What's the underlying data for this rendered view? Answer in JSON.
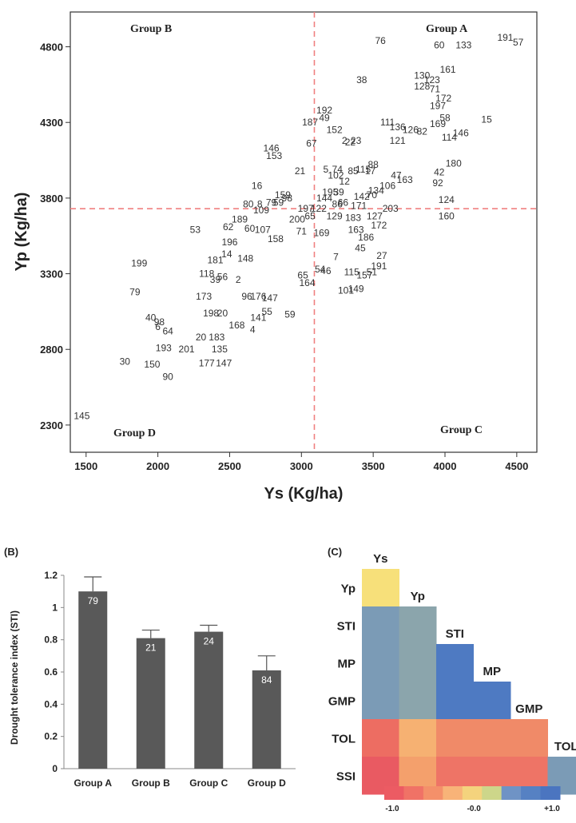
{
  "chart_data": [
    {
      "type": "scatter",
      "panel": "",
      "xlabel": "Ys (Kg/ha)",
      "ylabel": "Yp (Kg/ha)",
      "xlim": [
        1390,
        4640
      ],
      "ylim": [
        2120,
        5030
      ],
      "x_ticks": [
        1500,
        2000,
        2500,
        3000,
        3500,
        4000,
        4500
      ],
      "y_ticks": [
        2300,
        2800,
        3300,
        3800,
        4300,
        4800
      ],
      "ref_x": 3090,
      "ref_y": 3730,
      "quadrant_labels": {
        "a": "Group A",
        "b": "Group B",
        "c": "Group C",
        "d": "Group D"
      },
      "points": [
        {
          "id": "191",
          "x": 4420,
          "y": 4860
        },
        {
          "id": "57",
          "x": 4510,
          "y": 4830
        },
        {
          "id": "76",
          "x": 3550,
          "y": 4840
        },
        {
          "id": "60",
          "x": 3960,
          "y": 4810
        },
        {
          "id": "133",
          "x": 4130,
          "y": 4810
        },
        {
          "id": "161",
          "x": 4020,
          "y": 4650
        },
        {
          "id": "38",
          "x": 3420,
          "y": 4580
        },
        {
          "id": "130",
          "x": 3840,
          "y": 4610
        },
        {
          "id": "123",
          "x": 3910,
          "y": 4580
        },
        {
          "id": "128",
          "x": 3840,
          "y": 4540
        },
        {
          "id": "71",
          "x": 3930,
          "y": 4520
        },
        {
          "id": "172",
          "x": 3990,
          "y": 4460
        },
        {
          "id": "197",
          "x": 3950,
          "y": 4410
        },
        {
          "id": "15",
          "x": 4290,
          "y": 4320
        },
        {
          "id": "58",
          "x": 4000,
          "y": 4330
        },
        {
          "id": "169",
          "x": 3950,
          "y": 4290
        },
        {
          "id": "192",
          "x": 3160,
          "y": 4380
        },
        {
          "id": "187",
          "x": 3060,
          "y": 4300
        },
        {
          "id": "49",
          "x": 3160,
          "y": 4330
        },
        {
          "id": "111",
          "x": 3600,
          "y": 4300
        },
        {
          "id": "136",
          "x": 3670,
          "y": 4270
        },
        {
          "id": "126",
          "x": 3760,
          "y": 4250
        },
        {
          "id": "82",
          "x": 3840,
          "y": 4240
        },
        {
          "id": "152",
          "x": 3230,
          "y": 4250
        },
        {
          "id": "146",
          "x": 4110,
          "y": 4230
        },
        {
          "id": "114",
          "x": 4030,
          "y": 4200
        },
        {
          "id": "121",
          "x": 3670,
          "y": 4180
        },
        {
          "id": "2",
          "x": 3300,
          "y": 4180
        },
        {
          "id": "22",
          "x": 3340,
          "y": 4170
        },
        {
          "id": "23",
          "x": 3380,
          "y": 4180
        },
        {
          "id": "67",
          "x": 3070,
          "y": 4160
        },
        {
          "id": "180",
          "x": 4060,
          "y": 4030
        },
        {
          "id": "146",
          "x": 2790,
          "y": 4130
        },
        {
          "id": "153",
          "x": 2810,
          "y": 4080
        },
        {
          "id": "88",
          "x": 3500,
          "y": 4020
        },
        {
          "id": "42",
          "x": 3960,
          "y": 3970
        },
        {
          "id": "21",
          "x": 2990,
          "y": 3980
        },
        {
          "id": "5",
          "x": 3170,
          "y": 3990
        },
        {
          "id": "74",
          "x": 3250,
          "y": 3990
        },
        {
          "id": "85",
          "x": 3360,
          "y": 3980
        },
        {
          "id": "115",
          "x": 3430,
          "y": 3990
        },
        {
          "id": "17",
          "x": 3480,
          "y": 3980
        },
        {
          "id": "102",
          "x": 3240,
          "y": 3950
        },
        {
          "id": "47",
          "x": 3660,
          "y": 3950
        },
        {
          "id": "163",
          "x": 3720,
          "y": 3920
        },
        {
          "id": "12",
          "x": 3300,
          "y": 3910
        },
        {
          "id": "92",
          "x": 3950,
          "y": 3900
        },
        {
          "id": "16",
          "x": 2690,
          "y": 3880
        },
        {
          "id": "106",
          "x": 3600,
          "y": 3880
        },
        {
          "id": "134",
          "x": 3520,
          "y": 3850
        },
        {
          "id": "195",
          "x": 3200,
          "y": 3840
        },
        {
          "id": "39",
          "x": 3260,
          "y": 3840
        },
        {
          "id": "142",
          "x": 3420,
          "y": 3810
        },
        {
          "id": "70",
          "x": 3490,
          "y": 3820
        },
        {
          "id": "159",
          "x": 2870,
          "y": 3820
        },
        {
          "id": "144",
          "x": 3160,
          "y": 3800
        },
        {
          "id": "124",
          "x": 4010,
          "y": 3790
        },
        {
          "id": "98",
          "x": 2900,
          "y": 3800
        },
        {
          "id": "80",
          "x": 2630,
          "y": 3760
        },
        {
          "id": "8",
          "x": 2710,
          "y": 3760
        },
        {
          "id": "79",
          "x": 2790,
          "y": 3770
        },
        {
          "id": "59",
          "x": 2840,
          "y": 3770
        },
        {
          "id": "86",
          "x": 3250,
          "y": 3760
        },
        {
          "id": "66",
          "x": 3290,
          "y": 3770
        },
        {
          "id": "171",
          "x": 3400,
          "y": 3750
        },
        {
          "id": "203",
          "x": 3620,
          "y": 3730
        },
        {
          "id": "160",
          "x": 4010,
          "y": 3680
        },
        {
          "id": "109",
          "x": 2720,
          "y": 3720
        },
        {
          "id": "197",
          "x": 3030,
          "y": 3730
        },
        {
          "id": "122",
          "x": 3120,
          "y": 3730
        },
        {
          "id": "189",
          "x": 2570,
          "y": 3660
        },
        {
          "id": "200",
          "x": 2970,
          "y": 3660
        },
        {
          "id": "65",
          "x": 3060,
          "y": 3680
        },
        {
          "id": "129",
          "x": 3230,
          "y": 3680
        },
        {
          "id": "183",
          "x": 3360,
          "y": 3670
        },
        {
          "id": "127",
          "x": 3510,
          "y": 3680
        },
        {
          "id": "172",
          "x": 3540,
          "y": 3620
        },
        {
          "id": "53",
          "x": 2260,
          "y": 3590
        },
        {
          "id": "62",
          "x": 2490,
          "y": 3610
        },
        {
          "id": "60",
          "x": 2640,
          "y": 3600
        },
        {
          "id": "71",
          "x": 3000,
          "y": 3580
        },
        {
          "id": "169",
          "x": 3140,
          "y": 3570
        },
        {
          "id": "163",
          "x": 3380,
          "y": 3590
        },
        {
          "id": "186",
          "x": 3450,
          "y": 3540
        },
        {
          "id": "107",
          "x": 2730,
          "y": 3590
        },
        {
          "id": "196",
          "x": 2500,
          "y": 3510
        },
        {
          "id": "158",
          "x": 2820,
          "y": 3530
        },
        {
          "id": "45",
          "x": 3410,
          "y": 3470
        },
        {
          "id": "27",
          "x": 3560,
          "y": 3420
        },
        {
          "id": "14",
          "x": 2480,
          "y": 3430
        },
        {
          "id": "181",
          "x": 2400,
          "y": 3390
        },
        {
          "id": "148",
          "x": 2610,
          "y": 3400
        },
        {
          "id": "7",
          "x": 3240,
          "y": 3410
        },
        {
          "id": "54",
          "x": 3130,
          "y": 3330
        },
        {
          "id": "46",
          "x": 3170,
          "y": 3320
        },
        {
          "id": "191",
          "x": 3540,
          "y": 3350
        },
        {
          "id": "51",
          "x": 3490,
          "y": 3310
        },
        {
          "id": "115",
          "x": 3350,
          "y": 3310
        },
        {
          "id": "157",
          "x": 3440,
          "y": 3290
        },
        {
          "id": "199",
          "x": 1870,
          "y": 3370
        },
        {
          "id": "118",
          "x": 2340,
          "y": 3300
        },
        {
          "id": "56",
          "x": 2450,
          "y": 3280
        },
        {
          "id": "39",
          "x": 2400,
          "y": 3260
        },
        {
          "id": "2",
          "x": 2560,
          "y": 3260
        },
        {
          "id": "65",
          "x": 3010,
          "y": 3290
        },
        {
          "id": "164",
          "x": 3040,
          "y": 3240
        },
        {
          "id": "101",
          "x": 3310,
          "y": 3190
        },
        {
          "id": "149",
          "x": 3380,
          "y": 3200
        },
        {
          "id": "79",
          "x": 1840,
          "y": 3180
        },
        {
          "id": "173",
          "x": 2320,
          "y": 3150
        },
        {
          "id": "96",
          "x": 2620,
          "y": 3150
        },
        {
          "id": "176",
          "x": 2700,
          "y": 3150
        },
        {
          "id": "147",
          "x": 2780,
          "y": 3140
        },
        {
          "id": "59",
          "x": 2920,
          "y": 3030
        },
        {
          "id": "40",
          "x": 1950,
          "y": 3010
        },
        {
          "id": "198",
          "x": 2370,
          "y": 3040
        },
        {
          "id": "20",
          "x": 2450,
          "y": 3040
        },
        {
          "id": "55",
          "x": 2760,
          "y": 3050
        },
        {
          "id": "98",
          "x": 2010,
          "y": 2980
        },
        {
          "id": "6",
          "x": 2000,
          "y": 2950
        },
        {
          "id": "141",
          "x": 2700,
          "y": 3010
        },
        {
          "id": "168",
          "x": 2550,
          "y": 2960
        },
        {
          "id": "64",
          "x": 2070,
          "y": 2920
        },
        {
          "id": "4",
          "x": 2660,
          "y": 2930
        },
        {
          "id": "20",
          "x": 2300,
          "y": 2880
        },
        {
          "id": "183",
          "x": 2410,
          "y": 2880
        },
        {
          "id": "193",
          "x": 2040,
          "y": 2810
        },
        {
          "id": "201",
          "x": 2200,
          "y": 2800
        },
        {
          "id": "135",
          "x": 2430,
          "y": 2800
        },
        {
          "id": "30",
          "x": 1770,
          "y": 2720
        },
        {
          "id": "150",
          "x": 1960,
          "y": 2700
        },
        {
          "id": "177",
          "x": 2340,
          "y": 2710
        },
        {
          "id": "147",
          "x": 2460,
          "y": 2710
        },
        {
          "id": "90",
          "x": 2070,
          "y": 2620
        },
        {
          "id": "145",
          "x": 1470,
          "y": 2360
        }
      ]
    },
    {
      "type": "bar",
      "panel": "(B)",
      "ylabel": "Drought tolerance index (STI)",
      "ylim": [
        0,
        1.2
      ],
      "y_ticks": [
        "0",
        "0.2",
        "0.4",
        "0.6",
        "0.8",
        "1",
        "1.2"
      ],
      "categories": [
        "Group A",
        "Group B",
        "Group C",
        "Group D"
      ],
      "values": [
        1.1,
        0.81,
        0.85,
        0.61
      ],
      "errors": [
        0.09,
        0.05,
        0.04,
        0.09
      ],
      "bar_labels": [
        "79",
        "21",
        "24",
        "84"
      ],
      "bar_color": "#595959"
    },
    {
      "type": "heatmap",
      "panel": "(C)",
      "row_labels": [
        "Yp",
        "STI",
        "MP",
        "GMP",
        "TOL",
        "SSI"
      ],
      "col_labels": [
        "Ys",
        "Yp",
        "STI",
        "MP",
        "GMP",
        "TOL"
      ],
      "colors": [
        [
          "#f7e07a"
        ],
        [
          "#7b9bb6",
          "#8ba5ac"
        ],
        [
          "#7b9bb6",
          "#8ba5ac",
          "#4e7ac2"
        ],
        [
          "#7b9bb6",
          "#8ba5ac",
          "#4e7ac2",
          "#4e7ac2"
        ],
        [
          "#ed6d62",
          "#f6b172",
          "#f08a68",
          "#f08a68",
          "#f08a68"
        ],
        [
          "#e95a62",
          "#f4a06c",
          "#ee7466",
          "#ee7466",
          "#ee7466",
          "#7b9bb6"
        ]
      ],
      "colorbar_colors": [
        "#ec5b63",
        "#f07266",
        "#f4906a",
        "#f8b378",
        "#f4d37d",
        "#cdd68a",
        "#6f93c5",
        "#5681c3",
        "#4b75c0"
      ],
      "colorbar_labels": [
        "-1.0",
        "-0.0",
        "+1.0"
      ]
    }
  ]
}
